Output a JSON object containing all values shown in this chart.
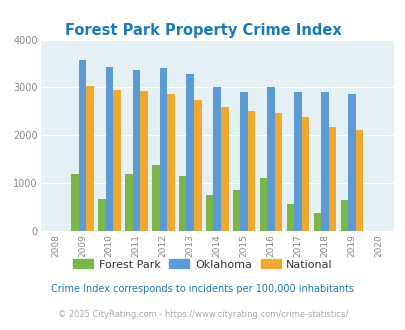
{
  "title": "Forest Park Property Crime Index",
  "years": [
    2008,
    2009,
    2010,
    2011,
    2012,
    2013,
    2014,
    2015,
    2016,
    2017,
    2018,
    2019,
    2020
  ],
  "forest_park": [
    0,
    1200,
    660,
    1190,
    1370,
    1140,
    760,
    860,
    1110,
    560,
    380,
    640,
    0
  ],
  "oklahoma": [
    0,
    3580,
    3420,
    3360,
    3400,
    3280,
    3000,
    2900,
    3000,
    2900,
    2900,
    2860,
    0
  ],
  "national": [
    0,
    3040,
    2950,
    2920,
    2870,
    2730,
    2600,
    2510,
    2460,
    2380,
    2170,
    2110,
    0
  ],
  "fp_color": "#7ab648",
  "ok_color": "#5b9bd5",
  "nat_color": "#f0a830",
  "bg_color": "#e4f0f3",
  "title_color": "#1a7abf",
  "ylim": [
    0,
    4000
  ],
  "yticks": [
    0,
    1000,
    2000,
    3000,
    4000
  ],
  "subtitle": "Crime Index corresponds to incidents per 100,000 inhabitants",
  "footer": "© 2025 CityRating.com - https://www.cityrating.com/crime-statistics/",
  "legend_labels": [
    "Forest Park",
    "Oklahoma",
    "National"
  ],
  "bar_width": 0.28,
  "figsize": [
    4.06,
    3.3
  ],
  "dpi": 100
}
